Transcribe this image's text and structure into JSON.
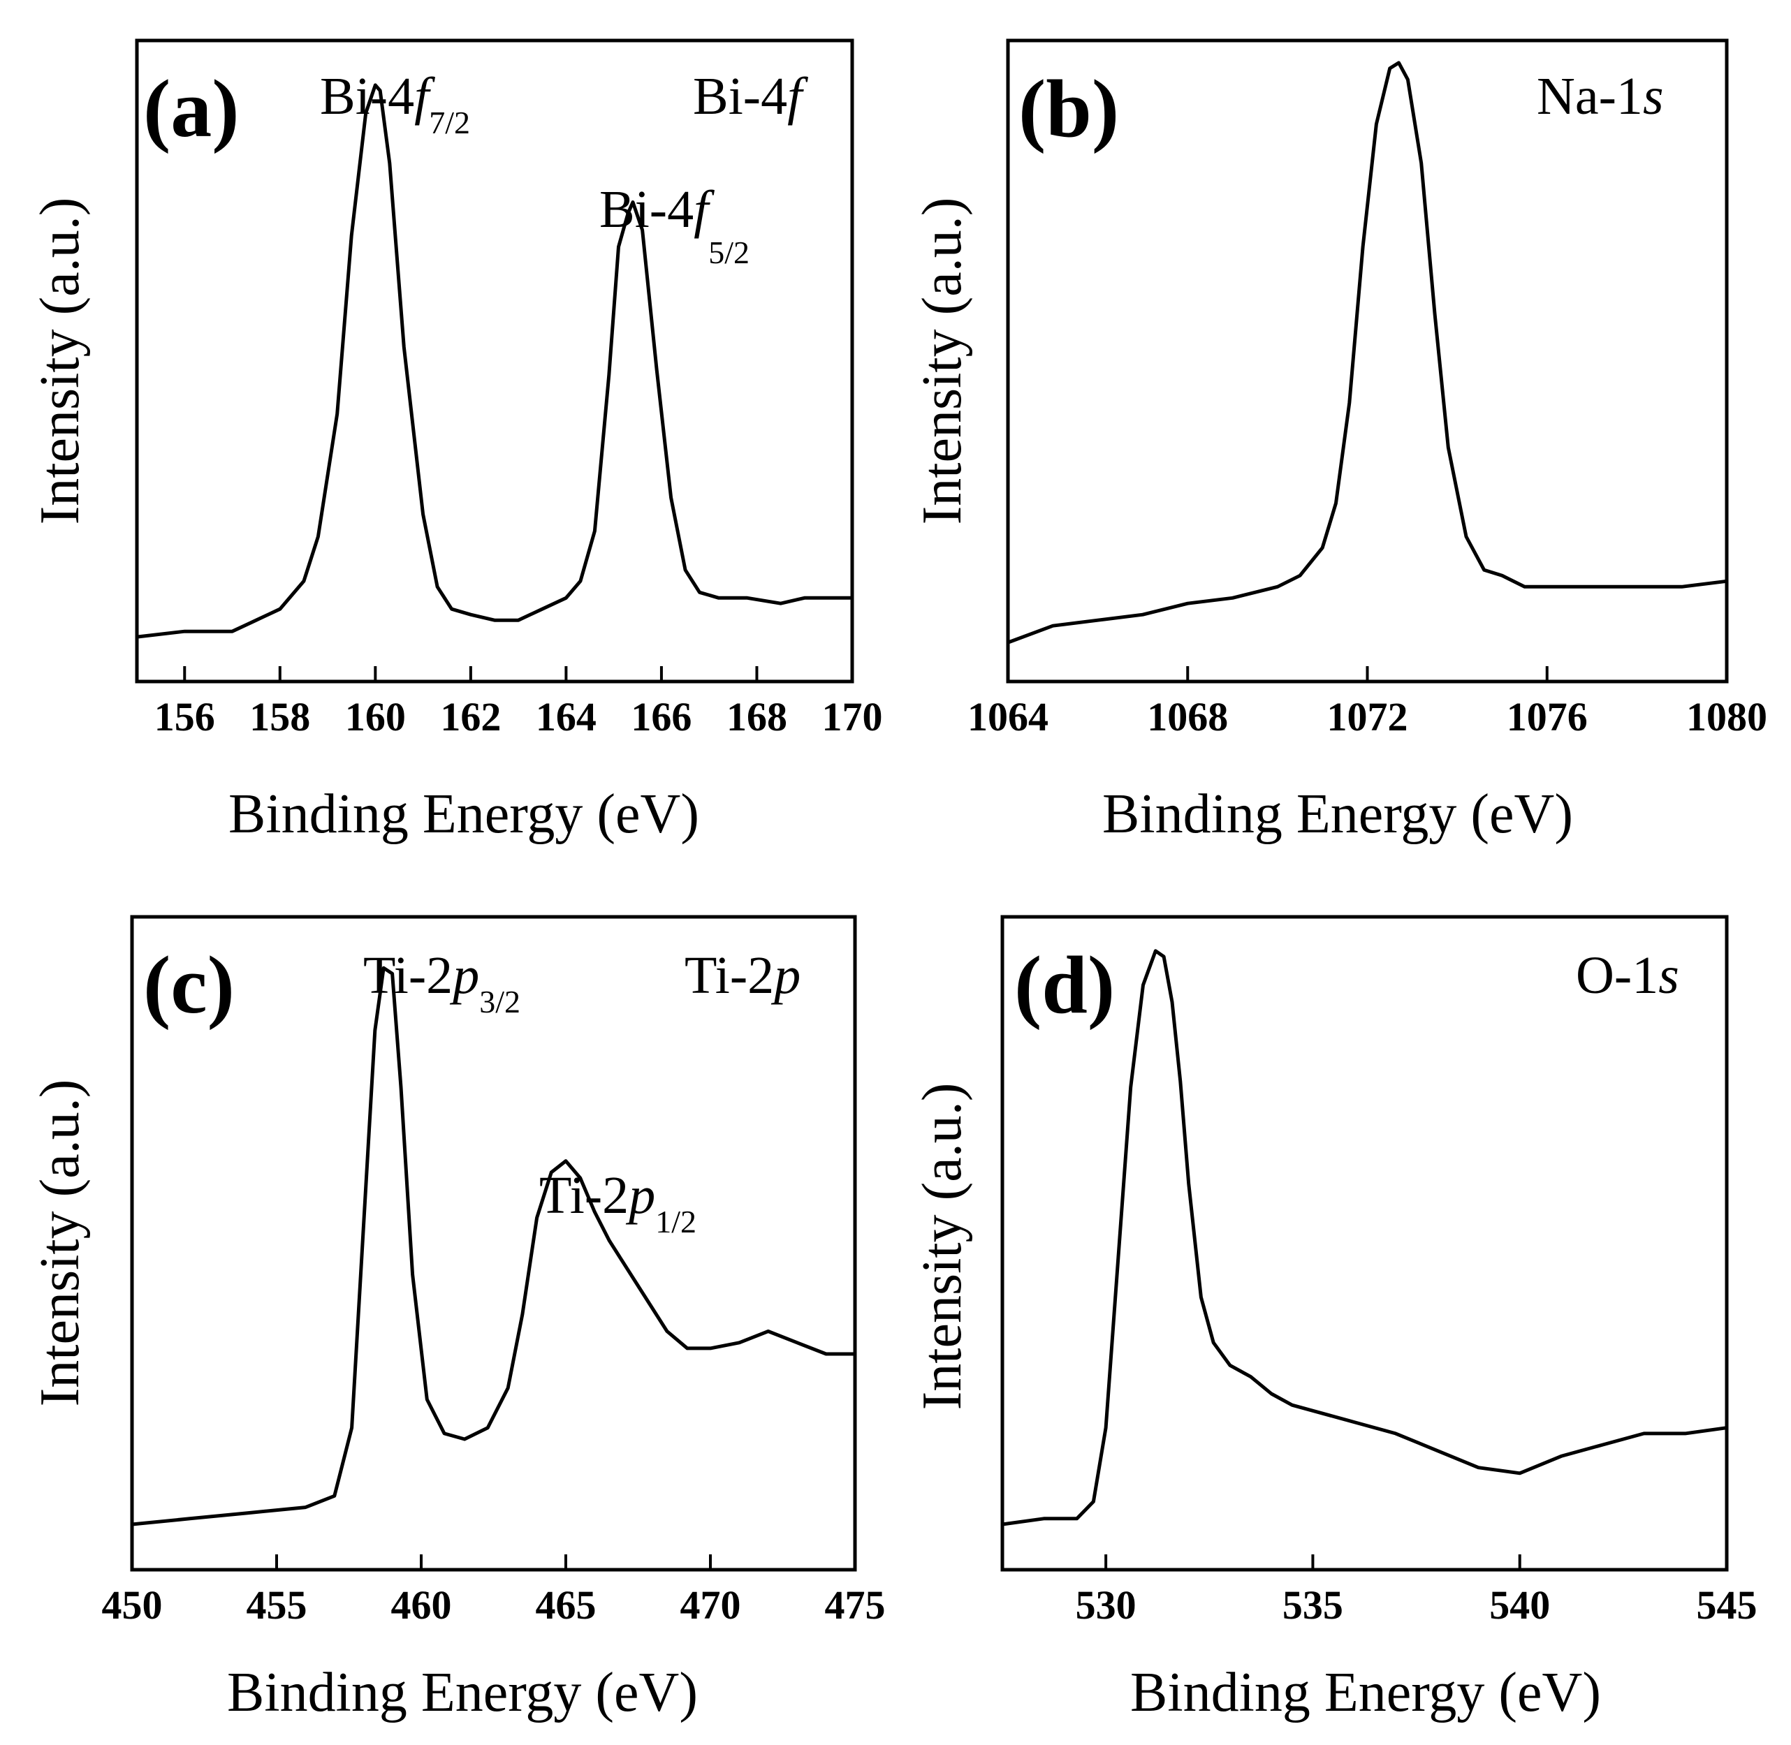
{
  "chart_data": [
    {
      "panel": "(a)",
      "type": "line",
      "title": "Bi-4f",
      "title_parts": {
        "base": "Bi-4",
        "italic": "f"
      },
      "xlabel": "Binding Energy  (eV)",
      "ylabel": "Intensity  (a.u.)",
      "xlim": [
        155,
        170
      ],
      "ylim": [
        0,
        1.15
      ],
      "xticks": [
        156,
        158,
        160,
        162,
        164,
        166,
        168,
        170
      ],
      "xtick_labels": [
        "156",
        "158",
        "160",
        "162",
        "164",
        "166",
        "168",
        "170"
      ],
      "peak_labels": [
        {
          "base": "Bi-4",
          "italic": "f",
          "sub": "7/2"
        },
        {
          "base": "Bi-4",
          "italic": "f",
          "sub": "5/2"
        }
      ],
      "series": [
        {
          "name": "Bi-4f",
          "x": [
            155,
            156,
            157,
            157.5,
            158,
            158.5,
            158.8,
            159.2,
            159.5,
            159.8,
            160,
            160.1,
            160.3,
            160.6,
            161,
            161.3,
            161.6,
            162,
            162.5,
            163,
            163.5,
            164,
            164.3,
            164.6,
            164.9,
            165.1,
            165.3,
            165.4,
            165.6,
            165.9,
            166.2,
            166.5,
            166.8,
            167.2,
            167.8,
            168.5,
            169,
            170
          ],
          "y": [
            0.08,
            0.09,
            0.09,
            0.11,
            0.13,
            0.18,
            0.26,
            0.48,
            0.8,
            1.02,
            1.07,
            1.06,
            0.93,
            0.6,
            0.3,
            0.17,
            0.13,
            0.12,
            0.11,
            0.11,
            0.13,
            0.15,
            0.18,
            0.27,
            0.55,
            0.78,
            0.84,
            0.86,
            0.81,
            0.56,
            0.33,
            0.2,
            0.16,
            0.15,
            0.15,
            0.14,
            0.15,
            0.15
          ]
        }
      ]
    },
    {
      "panel": "(b)",
      "type": "line",
      "title": "Na-1s",
      "title_parts": {
        "base": "Na-1",
        "italic": "s"
      },
      "xlabel": "Binding Energy  (eV)",
      "ylabel": "Intensity  (a.u.)",
      "xlim": [
        1064,
        1080
      ],
      "ylim": [
        0,
        1.15
      ],
      "xticks": [
        1064,
        1068,
        1072,
        1076,
        1080
      ],
      "xtick_labels": [
        "1064",
        "1068",
        "1072",
        "1076",
        "1080"
      ],
      "series": [
        {
          "name": "Na-1s",
          "x": [
            1064,
            1065,
            1066,
            1067,
            1068,
            1069,
            1070,
            1070.5,
            1071,
            1071.3,
            1071.6,
            1071.9,
            1072.2,
            1072.5,
            1072.7,
            1072.9,
            1073.2,
            1073.5,
            1073.8,
            1074.2,
            1074.6,
            1075,
            1075.5,
            1076,
            1077,
            1078,
            1079,
            1080
          ],
          "y": [
            0.07,
            0.1,
            0.11,
            0.12,
            0.14,
            0.15,
            0.17,
            0.19,
            0.24,
            0.32,
            0.5,
            0.78,
            1.0,
            1.1,
            1.11,
            1.08,
            0.93,
            0.66,
            0.42,
            0.26,
            0.2,
            0.19,
            0.17,
            0.17,
            0.17,
            0.17,
            0.17,
            0.18
          ]
        }
      ]
    },
    {
      "panel": "(c)",
      "type": "line",
      "title": "Ti-2p",
      "title_parts": {
        "base": "Ti-2",
        "italic": "p"
      },
      "xlabel": "Binding Energy  (eV)",
      "ylabel": "Intensity  (a.u.)",
      "xlim": [
        450,
        475
      ],
      "ylim": [
        0,
        1.15
      ],
      "xticks": [
        450,
        455,
        460,
        465,
        470,
        475
      ],
      "xtick_labels": [
        "450",
        "455",
        "460",
        "465",
        "470",
        "475"
      ],
      "peak_labels": [
        {
          "base": "Ti-2",
          "italic": "p",
          "sub": "3/2"
        },
        {
          "base": "Ti-2",
          "italic": "p",
          "sub": "1/2"
        }
      ],
      "series": [
        {
          "name": "Ti-2p",
          "x": [
            450,
            452,
            454,
            456,
            457,
            457.6,
            458,
            458.4,
            458.7,
            459,
            459.3,
            459.7,
            460.2,
            460.8,
            461.5,
            462.3,
            463,
            463.5,
            464,
            464.5,
            465,
            465.5,
            466,
            466.5,
            467.5,
            468.5,
            469.2,
            470,
            471,
            472,
            473,
            474,
            475
          ],
          "y": [
            0.08,
            0.09,
            0.1,
            0.11,
            0.13,
            0.25,
            0.6,
            0.95,
            1.06,
            1.05,
            0.85,
            0.52,
            0.3,
            0.24,
            0.23,
            0.25,
            0.32,
            0.45,
            0.62,
            0.7,
            0.72,
            0.69,
            0.63,
            0.58,
            0.5,
            0.42,
            0.39,
            0.39,
            0.4,
            0.42,
            0.4,
            0.38,
            0.38
          ]
        }
      ]
    },
    {
      "panel": "(d)",
      "type": "line",
      "title": "O-1s",
      "title_parts": {
        "base": "O-1",
        "italic": "s"
      },
      "xlabel": "Binding Energy  (eV)",
      "ylabel": "Intensity  (a.u.)",
      "xlim": [
        527.5,
        545
      ],
      "ylim": [
        0,
        1.15
      ],
      "xticks": [
        530,
        535,
        540,
        545
      ],
      "xtick_labels": [
        "530",
        "535",
        "540",
        "545"
      ],
      "series": [
        {
          "name": "O-1s",
          "x": [
            527.5,
            528.5,
            529.3,
            529.7,
            530,
            530.3,
            530.6,
            530.9,
            531.2,
            531.4,
            531.6,
            531.8,
            532,
            532.3,
            532.6,
            533,
            533.5,
            534,
            534.5,
            535,
            536,
            537,
            538,
            539,
            540,
            541,
            542,
            543,
            544,
            545
          ],
          "y": [
            0.08,
            0.09,
            0.09,
            0.12,
            0.25,
            0.55,
            0.85,
            1.03,
            1.09,
            1.08,
            1.0,
            0.86,
            0.68,
            0.48,
            0.4,
            0.36,
            0.34,
            0.31,
            0.29,
            0.28,
            0.26,
            0.24,
            0.21,
            0.18,
            0.17,
            0.2,
            0.22,
            0.24,
            0.24,
            0.25
          ]
        }
      ]
    }
  ]
}
